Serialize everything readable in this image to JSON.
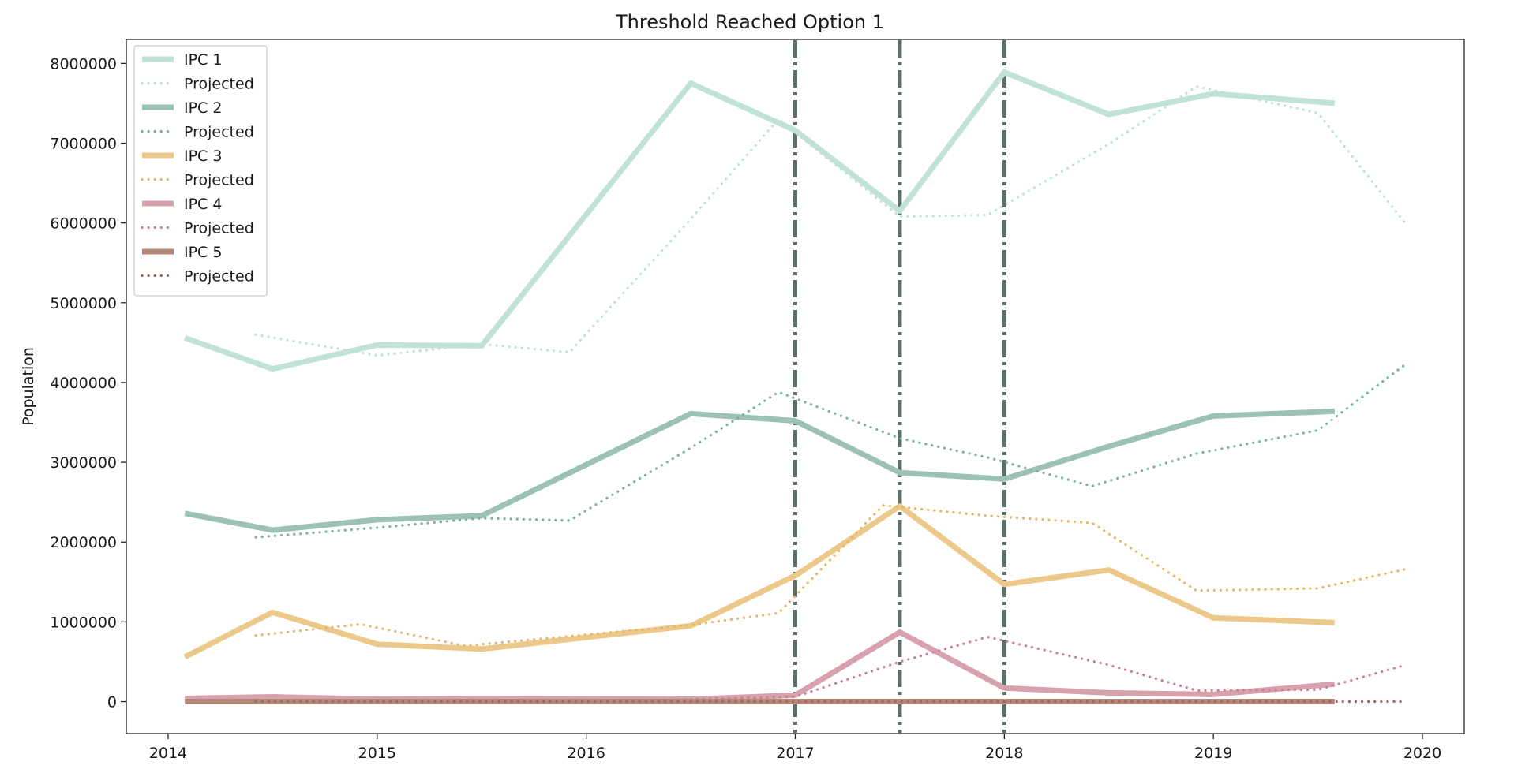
{
  "chart_data": {
    "type": "line",
    "title": "Threshold Reached Option 1",
    "xlabel": "",
    "ylabel": "Population",
    "xlim": [
      2013.8,
      2020.2
    ],
    "ylim": [
      -400000,
      8300000
    ],
    "x_ticks": [
      2014,
      2015,
      2016,
      2017,
      2018,
      2019,
      2020
    ],
    "y_ticks": [
      0,
      1000000,
      2000000,
      3000000,
      4000000,
      5000000,
      6000000,
      7000000,
      8000000
    ],
    "grid": false,
    "legend_position": "upper-left",
    "threshold_lines": [
      2017.0,
      2017.5,
      2018.0
    ],
    "threshold_color": "#5b7066",
    "series": [
      {
        "name": "IPC 1",
        "style": "solid",
        "color": "#c1e2d6",
        "x": [
          2014.08,
          2014.5,
          2015.0,
          2015.5,
          2016.5,
          2017.0,
          2017.5,
          2018.0,
          2018.5,
          2019.0,
          2019.58
        ],
        "values": [
          4560000,
          4170000,
          4470000,
          4460000,
          7750000,
          7160000,
          6150000,
          7890000,
          7360000,
          7620000,
          7500000
        ]
      },
      {
        "name": "Projected",
        "style": "dotted",
        "color": "#c1e2d6",
        "x": [
          2014.42,
          2015.0,
          2015.5,
          2015.92,
          2016.5,
          2016.92,
          2017.5,
          2017.92,
          2018.5,
          2018.92,
          2019.5,
          2019.92
        ],
        "values": [
          4600000,
          4340000,
          4480000,
          4380000,
          6050000,
          7300000,
          6080000,
          6100000,
          6990000,
          7710000,
          7380000,
          5990000
        ]
      },
      {
        "name": "IPC 2",
        "style": "solid",
        "color": "#9bc2b2",
        "x": [
          2014.08,
          2014.5,
          2015.0,
          2015.5,
          2016.5,
          2017.0,
          2017.5,
          2018.0,
          2018.5,
          2019.0,
          2019.58
        ],
        "values": [
          2360000,
          2150000,
          2280000,
          2330000,
          3610000,
          3520000,
          2870000,
          2790000,
          3200000,
          3580000,
          3640000
        ]
      },
      {
        "name": "Projected",
        "style": "dotted",
        "color": "#7ab39d",
        "x": [
          2014.42,
          2015.0,
          2015.5,
          2015.92,
          2016.5,
          2016.92,
          2017.5,
          2017.92,
          2018.42,
          2018.92,
          2019.5,
          2019.92
        ],
        "values": [
          2060000,
          2180000,
          2300000,
          2270000,
          3180000,
          3880000,
          3300000,
          3060000,
          2700000,
          3110000,
          3400000,
          4230000
        ]
      },
      {
        "name": "IPC 3",
        "style": "solid",
        "color": "#ecc98a",
        "x": [
          2014.08,
          2014.5,
          2015.0,
          2015.5,
          2016.5,
          2017.0,
          2017.5,
          2018.0,
          2018.5,
          2019.0,
          2019.58
        ],
        "values": [
          560000,
          1120000,
          720000,
          660000,
          950000,
          1580000,
          2450000,
          1470000,
          1650000,
          1050000,
          990000
        ]
      },
      {
        "name": "Projected",
        "style": "dotted",
        "color": "#e8b766",
        "x": [
          2014.42,
          2014.92,
          2015.42,
          2015.92,
          2016.5,
          2016.92,
          2017.42,
          2017.92,
          2018.42,
          2018.92,
          2019.5,
          2019.92
        ],
        "values": [
          830000,
          970000,
          700000,
          820000,
          960000,
          1110000,
          2460000,
          2330000,
          2240000,
          1390000,
          1420000,
          1660000
        ]
      },
      {
        "name": "IPC 4",
        "style": "solid",
        "color": "#d7a1ad",
        "x": [
          2014.08,
          2014.5,
          2015.0,
          2015.5,
          2016.5,
          2017.0,
          2017.5,
          2018.0,
          2018.5,
          2019.0,
          2019.58
        ],
        "values": [
          40000,
          60000,
          30000,
          40000,
          30000,
          80000,
          870000,
          170000,
          110000,
          90000,
          220000
        ]
      },
      {
        "name": "Projected",
        "style": "dotted",
        "color": "#cd7e93",
        "x": [
          2014.42,
          2015.0,
          2015.5,
          2016.0,
          2016.5,
          2017.0,
          2017.5,
          2017.92,
          2018.5,
          2018.92,
          2019.5,
          2019.92
        ],
        "values": [
          20000,
          20000,
          20000,
          20000,
          30000,
          60000,
          500000,
          810000,
          460000,
          140000,
          150000,
          460000
        ]
      },
      {
        "name": "IPC 5",
        "style": "solid",
        "color": "#b3877a",
        "x": [
          2014.08,
          2014.5,
          2015.0,
          2015.5,
          2016.5,
          2017.0,
          2017.5,
          2018.0,
          2018.5,
          2019.0,
          2019.58
        ],
        "values": [
          0,
          0,
          0,
          0,
          0,
          0,
          0,
          0,
          0,
          0,
          0
        ]
      },
      {
        "name": "Projected",
        "style": "dotted",
        "color": "#9b6a64",
        "x": [
          2014.42,
          2015.0,
          2015.5,
          2016.0,
          2016.5,
          2017.0,
          2017.5,
          2018.0,
          2018.5,
          2019.0,
          2019.5,
          2019.92
        ],
        "values": [
          0,
          0,
          0,
          0,
          0,
          0,
          0,
          0,
          0,
          0,
          0,
          0
        ]
      }
    ]
  }
}
